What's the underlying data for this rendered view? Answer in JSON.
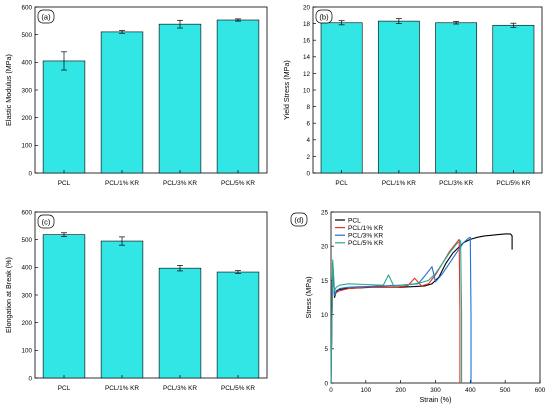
{
  "chart_data": [
    {
      "type": "bar",
      "panel": "(a)",
      "categories": [
        "PCL",
        "PCL/1% KR",
        "PCL/3% KR",
        "PCL/5% KR"
      ],
      "values": [
        405,
        510,
        538,
        553
      ],
      "errors": [
        33,
        5,
        14,
        4
      ],
      "ylabel": "Elastic Modulus (MPa)",
      "xlabel": "",
      "ylim": [
        0,
        600
      ],
      "yticks": [
        0,
        100,
        200,
        300,
        400,
        500,
        600
      ],
      "color": "#33e6e6"
    },
    {
      "type": "bar",
      "panel": "(b)",
      "categories": [
        "PCL",
        "PCL/1% KR",
        "PCL/3% KR",
        "PCL/5% KR"
      ],
      "values": [
        18.1,
        18.3,
        18.1,
        17.8
      ],
      "errors": [
        0.25,
        0.3,
        0.15,
        0.25
      ],
      "ylabel": "Yield Stress (MPa)",
      "xlabel": "",
      "ylim": [
        0,
        20
      ],
      "yticks": [
        0,
        2,
        4,
        6,
        8,
        10,
        12,
        14,
        16,
        18,
        20
      ],
      "color": "#33e6e6"
    },
    {
      "type": "bar",
      "panel": "(c)",
      "categories": [
        "PCL",
        "PCL/1% KR",
        "PCL/3% KR",
        "PCL/5% KR"
      ],
      "values": [
        518,
        495,
        397,
        383
      ],
      "errors": [
        7,
        15,
        10,
        5
      ],
      "ylabel": "Elongation at Break (%)",
      "xlabel": "",
      "ylim": [
        0,
        600
      ],
      "yticks": [
        0,
        100,
        200,
        300,
        400,
        500,
        600
      ],
      "color": "#33e6e6"
    },
    {
      "type": "line",
      "panel": "(d)",
      "xlabel": "Strain (%)",
      "ylabel": "Stress (MPa)",
      "xlim": [
        0,
        600
      ],
      "ylim": [
        0,
        25
      ],
      "xticks": [
        0,
        100,
        200,
        300,
        400,
        500,
        600
      ],
      "yticks": [
        0,
        5,
        10,
        15,
        20,
        25
      ],
      "legend": "top-left",
      "series": [
        {
          "name": "PCL",
          "color": "#000000",
          "x": [
            0,
            5,
            10,
            15,
            20,
            40,
            80,
            120,
            160,
            200,
            240,
            270,
            290,
            310,
            330,
            350,
            370,
            380,
            400,
            420,
            440,
            460,
            480,
            500,
            515,
            520,
            520
          ],
          "y": [
            0,
            17.5,
            12.5,
            13.3,
            13.6,
            13.8,
            13.9,
            14.0,
            14.0,
            14.0,
            14.1,
            14.2,
            14.5,
            15.5,
            17.5,
            19.0,
            20.0,
            20.5,
            21.0,
            21.3,
            21.5,
            21.6,
            21.7,
            21.8,
            21.8,
            21.5,
            19.5
          ]
        },
        {
          "name": "PCL/1% KR",
          "color": "#e8302a",
          "x": [
            0,
            5,
            10,
            15,
            25,
            50,
            100,
            150,
            180,
            220,
            240,
            260,
            280,
            300,
            320,
            340,
            360,
            368,
            370,
            370
          ],
          "y": [
            0,
            17.0,
            12.8,
            13.2,
            13.5,
            13.8,
            14.0,
            14.0,
            14.0,
            14.2,
            15.3,
            14.2,
            14.5,
            15.8,
            17.5,
            19.2,
            20.5,
            21.0,
            10.0,
            0
          ]
        },
        {
          "name": "PCL/3% KR",
          "color": "#1f6fd6",
          "x": [
            0,
            5,
            10,
            15,
            25,
            50,
            100,
            150,
            200,
            250,
            270,
            290,
            300,
            320,
            340,
            360,
            380,
            395,
            400,
            402,
            402
          ],
          "y": [
            0,
            17.2,
            12.8,
            13.5,
            13.8,
            14.0,
            14.1,
            14.2,
            14.3,
            14.5,
            15.7,
            17.0,
            14.8,
            16.0,
            17.5,
            19.0,
            20.5,
            21.2,
            21.3,
            10.0,
            0
          ]
        },
        {
          "name": "PCL/5% KR",
          "color": "#2aa88a",
          "x": [
            0,
            5,
            10,
            15,
            25,
            50,
            100,
            150,
            165,
            180,
            200,
            220,
            240,
            260,
            280,
            300,
            320,
            340,
            360,
            372,
            375,
            375
          ],
          "y": [
            0,
            18.0,
            13.5,
            14.0,
            14.3,
            14.5,
            14.4,
            14.3,
            15.8,
            14.2,
            14.3,
            14.4,
            14.5,
            14.7,
            15.0,
            16.0,
            17.5,
            19.0,
            20.3,
            20.8,
            10.0,
            0
          ]
        }
      ]
    }
  ]
}
